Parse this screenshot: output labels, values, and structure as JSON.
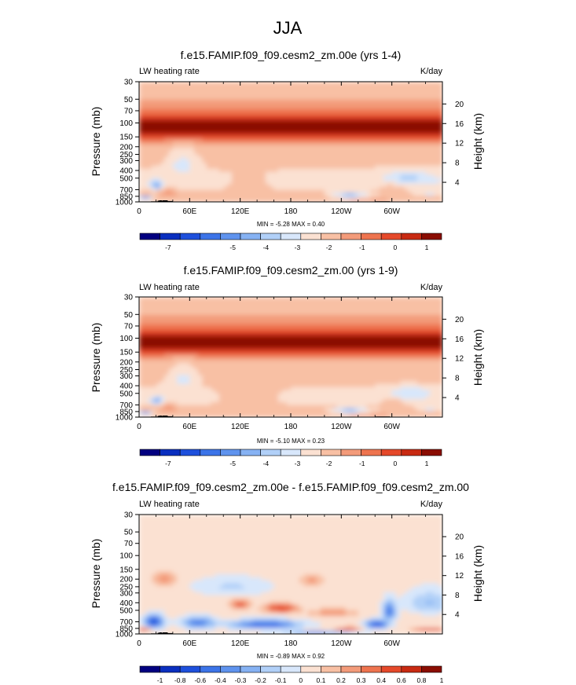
{
  "page_title": "JJA",
  "chart_data": [
    {
      "type": "heatmap",
      "title": "f.e15.FAMIP.f09_f09.cesm2_zm.00e (yrs 1-4)",
      "left_label": "LW heating rate",
      "right_label": "K/day",
      "ylabel": "Pressure (mb)",
      "ylabel_right": "Height (km)",
      "x_ticks": [
        "0",
        "60E",
        "120E",
        "180",
        "120W",
        "60W"
      ],
      "x_tick_lon": [
        0,
        60,
        120,
        180,
        240,
        300
      ],
      "xlim": [
        0,
        360
      ],
      "y_ticks": [
        "30",
        "50",
        "70",
        "100",
        "150",
        "200",
        "250",
        "300",
        "400",
        "500",
        "700",
        "850",
        "1000"
      ],
      "y_tick_p": [
        30,
        50,
        70,
        100,
        150,
        200,
        250,
        300,
        400,
        500,
        700,
        850,
        1000
      ],
      "ylim": [
        30,
        1000
      ],
      "height_ticks": [
        "20",
        "16",
        "12",
        "8",
        "4"
      ],
      "height_tick_km": [
        20,
        16,
        12,
        8,
        4
      ],
      "stats": "MIN =  -5.28  MAX =   0.40",
      "min": -5.28,
      "max": 0.4,
      "colorbar_labels": [
        "-7",
        "-5",
        "-4",
        "-3",
        "-2",
        "-1",
        "0",
        "1"
      ],
      "colorbar_levels": [
        -7,
        -6,
        -5,
        -4.5,
        -4,
        -3.5,
        -3,
        -2.5,
        -2,
        -1.5,
        -1,
        -0.5,
        0,
        0.5,
        1
      ],
      "variant": "full"
    },
    {
      "type": "heatmap",
      "title": "f.e15.FAMIP.f09_f09.cesm2_zm.00 (yrs 1-9)",
      "left_label": "LW heating rate",
      "right_label": "K/day",
      "ylabel": "Pressure (mb)",
      "ylabel_right": "Height (km)",
      "x_ticks": [
        "0",
        "60E",
        "120E",
        "180",
        "120W",
        "60W"
      ],
      "x_tick_lon": [
        0,
        60,
        120,
        180,
        240,
        300
      ],
      "xlim": [
        0,
        360
      ],
      "y_ticks": [
        "30",
        "50",
        "70",
        "100",
        "150",
        "200",
        "250",
        "300",
        "400",
        "500",
        "700",
        "850",
        "1000"
      ],
      "y_tick_p": [
        30,
        50,
        70,
        100,
        150,
        200,
        250,
        300,
        400,
        500,
        700,
        850,
        1000
      ],
      "ylim": [
        30,
        1000
      ],
      "height_ticks": [
        "20",
        "16",
        "12",
        "8",
        "4"
      ],
      "height_tick_km": [
        20,
        16,
        12,
        8,
        4
      ],
      "stats": "MIN =  -5.10  MAX =   0.23",
      "min": -5.1,
      "max": 0.23,
      "colorbar_labels": [
        "-7",
        "-5",
        "-4",
        "-3",
        "-2",
        "-1",
        "0",
        "1"
      ],
      "colorbar_levels": [
        -7,
        -6,
        -5,
        -4.5,
        -4,
        -3.5,
        -3,
        -2.5,
        -2,
        -1.5,
        -1,
        -0.5,
        0,
        0.5,
        1
      ],
      "variant": "full"
    },
    {
      "type": "heatmap",
      "title": "f.e15.FAMIP.f09_f09.cesm2_zm.00e - f.e15.FAMIP.f09_f09.cesm2_zm.00",
      "left_label": "LW heating rate",
      "right_label": "K/day",
      "ylabel": "Pressure (mb)",
      "ylabel_right": "Height (km)",
      "x_ticks": [
        "0",
        "60E",
        "120E",
        "180",
        "120W",
        "60W"
      ],
      "x_tick_lon": [
        0,
        60,
        120,
        180,
        240,
        300
      ],
      "xlim": [
        0,
        360
      ],
      "y_ticks": [
        "30",
        "50",
        "70",
        "100",
        "150",
        "200",
        "250",
        "300",
        "400",
        "500",
        "700",
        "850",
        "1000"
      ],
      "y_tick_p": [
        30,
        50,
        70,
        100,
        150,
        200,
        250,
        300,
        400,
        500,
        700,
        850,
        1000
      ],
      "ylim": [
        30,
        1000
      ],
      "height_ticks": [
        "20",
        "16",
        "12",
        "8",
        "4"
      ],
      "height_tick_km": [
        20,
        16,
        12,
        8,
        4
      ],
      "stats": "MIN =  -0.89  MAX =   0.92",
      "min": -0.89,
      "max": 0.92,
      "colorbar_labels": [
        "-1",
        "-0.8",
        "-0.6",
        "-0.4",
        "-0.3",
        "-0.2",
        "-0.1",
        "0",
        "0.1",
        "0.2",
        "0.3",
        "0.4",
        "0.6",
        "0.8",
        "1"
      ],
      "colorbar_levels": [
        -1,
        -0.8,
        -0.6,
        -0.4,
        -0.3,
        -0.2,
        -0.1,
        0,
        0.1,
        0.2,
        0.3,
        0.4,
        0.6,
        0.8,
        1
      ],
      "variant": "diff"
    }
  ],
  "colorbar_colors": [
    "#020080",
    "#0a2fbf",
    "#1e50dc",
    "#3c74e8",
    "#5f93ee",
    "#86b2f3",
    "#b1d0f8",
    "#d8e7fb",
    "#fbe1d2",
    "#f8c0a4",
    "#f39b7a",
    "#ee744f",
    "#e5492a",
    "#c82a12",
    "#8a0d02"
  ]
}
